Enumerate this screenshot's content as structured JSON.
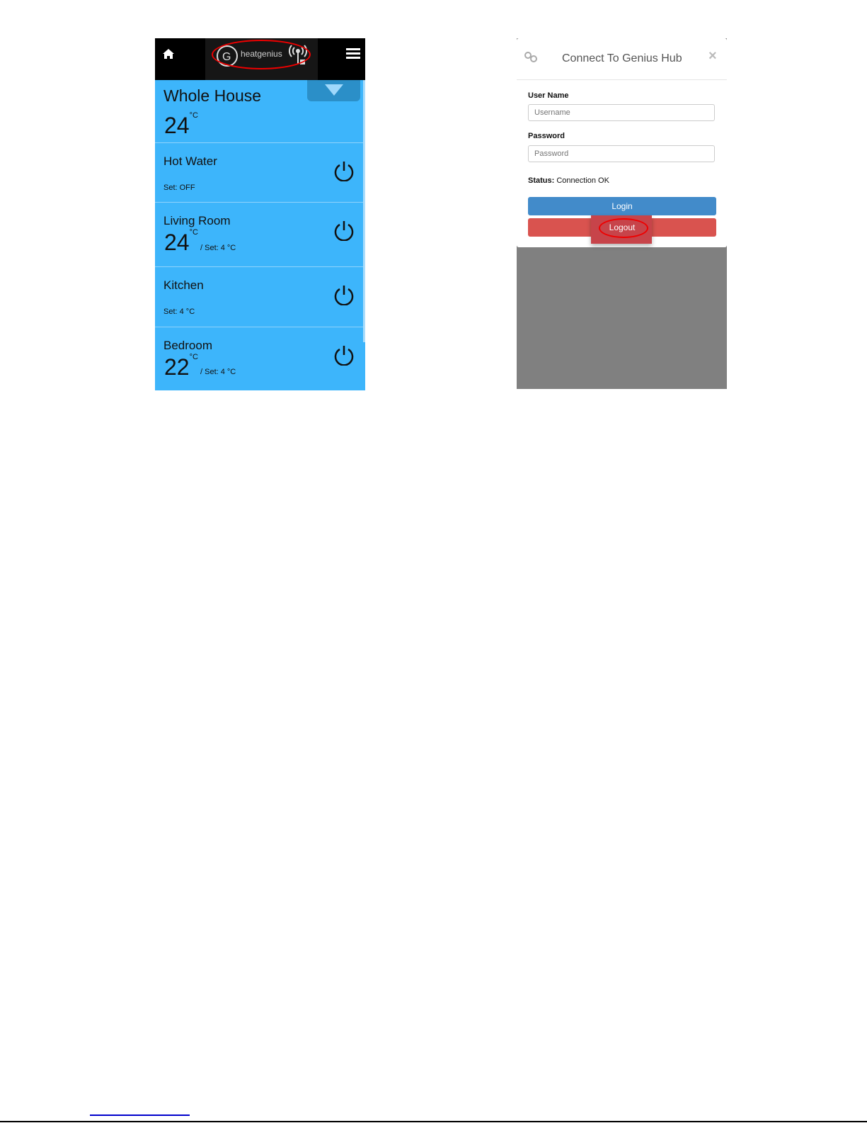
{
  "app_screen": {
    "brand": "heatgenius",
    "zones": [
      {
        "name": "Whole House",
        "temp": "24",
        "unit": "°C"
      },
      {
        "name": "Hot Water",
        "set": "Set:  OFF"
      },
      {
        "name": "Living Room",
        "temp": "24",
        "unit": "°C",
        "set": "/ Set:  4 °C"
      },
      {
        "name": "Kitchen",
        "set": "Set:  4 °C"
      },
      {
        "name": "Bedroom",
        "temp": "22",
        "unit": "°C",
        "set": "/ Set:  4 °C"
      }
    ],
    "colors": {
      "background": "#3db5fb",
      "header": "#000000",
      "highlight": "#ee0000"
    }
  },
  "login_dialog": {
    "title": "Connect To Genius Hub",
    "username_label": "User Name",
    "username_placeholder": "Username",
    "password_label": "Password",
    "password_placeholder": "Password",
    "status_label": "Status:",
    "status_value": "Connection OK",
    "login_label": "Login",
    "logout_label": "Logout",
    "colors": {
      "login": "#428bca",
      "logout": "#d9534f"
    }
  }
}
